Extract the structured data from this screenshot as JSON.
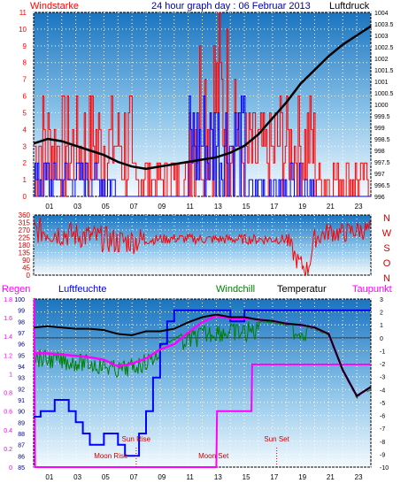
{
  "header": {
    "left_label": "Windstarke",
    "title": "24 hour graph day : 06 Februar 2013",
    "right_label": "Luftdruck"
  },
  "middle": {
    "compass": [
      "N",
      "W",
      "S",
      "O",
      "N"
    ]
  },
  "bottom": {
    "labels": {
      "regen": "Regen",
      "luftfeuchte": "Luftfeuchte",
      "windchill": "Windchill",
      "temperatur": "Temperatur",
      "taupunkt": "Taupunkt"
    },
    "annotations": {
      "moon_rise": "Moon Rise",
      "sun_rise": "Sun Rise",
      "moon_set": "Moon Set",
      "sun_set": "Sun Set"
    }
  },
  "colors": {
    "red": "#ff0000",
    "blue": "#0000ff",
    "green": "#008000",
    "magenta": "#ff00ff",
    "black": "#000000",
    "navy": "#000080",
    "dark_red": "#cc0000"
  },
  "chart_data": [
    {
      "type": "line",
      "name": "top-wind-pressure",
      "x_ticks": [
        "01",
        "03",
        "05",
        "07",
        "09",
        "11",
        "13",
        "15",
        "17",
        "19",
        "21",
        "23"
      ],
      "left_axis": {
        "ticks": [
          "0",
          "1",
          "2",
          "3",
          "4",
          "5",
          "6",
          "7",
          "8",
          "9",
          "10",
          "11"
        ],
        "ylim": [
          0,
          11
        ]
      },
      "right_axis": {
        "ticks": [
          "996",
          "996.5",
          "997",
          "997.5",
          "998",
          "998.5",
          "999",
          "999.5",
          "1000",
          "1000.5",
          "1001",
          "1001.5",
          "1002",
          "1002.5",
          "1003",
          "1003.5",
          "1004"
        ],
        "ylim": [
          996,
          1004
        ]
      },
      "series": [
        {
          "label": "Luftdruck",
          "color": "black",
          "x": [
            0,
            1,
            2,
            3,
            4,
            5,
            6,
            7,
            8,
            9,
            10,
            11,
            12,
            13,
            14,
            15,
            16,
            17,
            18,
            19,
            20,
            21,
            22,
            23,
            24
          ],
          "values": [
            998.3,
            998.5,
            998.4,
            998.2,
            998.0,
            997.8,
            997.5,
            997.3,
            997.2,
            997.3,
            997.4,
            997.5,
            997.6,
            997.7,
            997.9,
            998.2,
            998.7,
            999.4,
            1000.1,
            1000.9,
            1001.5,
            1002.1,
            1002.6,
            1003.0,
            1003.4
          ]
        }
      ]
    },
    {
      "type": "line",
      "name": "middle-wind-direction",
      "x_ticks": [
        "01",
        "03",
        "05",
        "07",
        "09",
        "11",
        "13",
        "15",
        "17",
        "19",
        "21",
        "23"
      ],
      "left_axis": {
        "ticks": [
          "0",
          "45",
          "90",
          "135",
          "180",
          "225",
          "270",
          "315",
          "360"
        ],
        "ylim": [
          0,
          360
        ]
      },
      "series": [
        {
          "label": "Windrichtung",
          "color": "red",
          "x": [
            0,
            2,
            4,
            6,
            8,
            10,
            12,
            14,
            16,
            18,
            18.8,
            19.5,
            20,
            21,
            22,
            23,
            24
          ],
          "values": [
            270,
            250,
            230,
            200,
            210,
            220,
            215,
            215,
            215,
            215,
            80,
            30,
            220,
            260,
            250,
            270,
            270
          ]
        }
      ]
    },
    {
      "type": "line",
      "name": "bottom-humidity-temperature",
      "x_ticks": [
        "01",
        "03",
        "05",
        "07",
        "09",
        "11",
        "13",
        "15",
        "17",
        "19",
        "21",
        "23"
      ],
      "left_axis_regen": {
        "ticks": [
          "0",
          "0.2",
          "0.4",
          "0.6",
          "0.8",
          "1",
          "1.2",
          "1.4",
          "1.6",
          "1.8"
        ],
        "ylim": [
          0,
          1.8
        ]
      },
      "left_axis_luftfeuchte": {
        "ticks": [
          "85",
          "86",
          "87",
          "88",
          "89",
          "90",
          "91",
          "92",
          "93",
          "94",
          "95",
          "96",
          "97",
          "98",
          "99",
          "100"
        ],
        "ylim": [
          85,
          100
        ]
      },
      "right_axis": {
        "ticks": [
          "3",
          "2",
          "1",
          "0",
          "-1",
          "-2",
          "-3",
          "-4",
          "-5",
          "-6",
          "-7",
          "-8",
          "-9",
          "-10"
        ],
        "ylim": [
          -10,
          3
        ]
      },
      "series": [
        {
          "label": "Luftfeuchte",
          "color": "blue",
          "x": [
            0,
            0.5,
            1,
            1.5,
            2,
            2.5,
            3,
            3.5,
            4,
            4.5,
            5,
            5.5,
            6,
            6.5,
            7,
            7.5,
            8,
            8.5,
            9,
            9.5,
            10,
            11,
            12,
            13,
            14,
            15,
            16,
            17,
            18,
            19,
            20,
            21,
            22,
            23,
            24
          ],
          "values": [
            89.5,
            90,
            90,
            91,
            91,
            90,
            89,
            88,
            87,
            87,
            88,
            88,
            87,
            86,
            86,
            88,
            90,
            93,
            96,
            98,
            99,
            99,
            99,
            99,
            98,
            99,
            99,
            99,
            99,
            99,
            99,
            99,
            99,
            99,
            99
          ]
        },
        {
          "label": "Temperatur",
          "color": "black",
          "x": [
            0,
            1,
            2,
            3,
            4,
            5,
            6,
            7,
            8,
            9,
            10,
            11,
            12,
            13,
            14,
            15,
            16,
            17,
            18,
            19,
            20,
            21,
            22,
            23,
            24
          ],
          "values": [
            0.8,
            0.9,
            0.8,
            0.7,
            0.7,
            0.6,
            0.3,
            0.2,
            0.5,
            0.5,
            0.7,
            1.2,
            1.6,
            1.8,
            1.6,
            1.6,
            1.4,
            1.3,
            1.1,
            1.0,
            0.8,
            0.3,
            -2.5,
            -4.5,
            -3.8
          ]
        },
        {
          "label": "Taupunkt",
          "color": "magenta",
          "x": [
            0,
            1,
            2,
            3,
            4,
            5,
            6,
            7,
            8,
            9,
            10,
            11,
            12,
            13,
            14,
            15,
            16,
            17,
            18,
            19,
            20,
            21,
            22,
            23,
            24
          ],
          "values": [
            -1.2,
            -1.2,
            -1.3,
            -1.4,
            -1.5,
            -1.7,
            -2.2,
            -2.0,
            -1.6,
            -0.9,
            -0.5,
            0.4,
            1.2,
            1.7,
            1.5,
            1.5,
            1.4,
            1.3,
            1.1,
            1.0,
            0.8,
            0.3,
            -2.5,
            -4.5,
            -3.8
          ]
        },
        {
          "label": "Windchill",
          "color": "green",
          "x": [
            0,
            1,
            2,
            3,
            4,
            5,
            6,
            7,
            8,
            9,
            10,
            11,
            12,
            13,
            14,
            15,
            16,
            17,
            18,
            19,
            20,
            21,
            22,
            23,
            24
          ],
          "values": [
            -0.8,
            -1.0,
            -1.1,
            -1.2,
            -1.3,
            -1.5,
            -1.8,
            -1.6,
            -1.2,
            -0.5,
            0.0,
            0.6,
            1.0,
            1.3,
            1.2,
            1.2,
            1.4,
            1.3,
            1.1,
            1.0,
            0.8,
            0.3,
            -2.5,
            -4.5,
            -3.8
          ]
        },
        {
          "label": "Regen",
          "color": "magenta",
          "x": [
            0,
            0.05,
            0.1,
            13,
            13.05,
            15.5,
            15.55,
            19.5,
            19.55,
            24
          ],
          "values": [
            1.8,
            1.8,
            0,
            0,
            0.6,
            0.6,
            1.1,
            1.1,
            1.1,
            1.1
          ]
        }
      ]
    }
  ]
}
